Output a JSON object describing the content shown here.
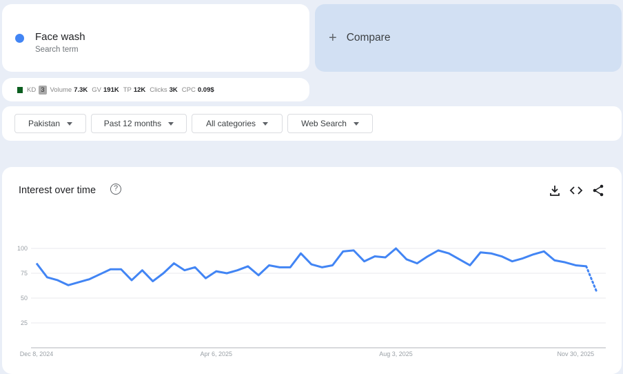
{
  "term": {
    "name": "Face wash",
    "subtitle": "Search term",
    "color": "#4285f4"
  },
  "compare": {
    "label": "Compare",
    "icon": "plus-icon"
  },
  "metrics": {
    "flag": "pakistan-flag-icon",
    "kd_label": "KD",
    "kd": "3",
    "volume_label": "Volume",
    "volume": "7.3K",
    "gv_label": "GV",
    "gv": "191K",
    "tp_label": "TP",
    "tp": "12K",
    "clicks_label": "Clicks",
    "clicks": "3K",
    "cpc_label": "CPC",
    "cpc": "0.09$"
  },
  "filters": [
    {
      "label": "Pakistan"
    },
    {
      "label": "Past 12 months"
    },
    {
      "label": "All categories"
    },
    {
      "label": "Web Search"
    }
  ],
  "chart_card": {
    "title": "Interest over time",
    "icons": [
      "help-icon",
      "download-icon",
      "embed-code-icon",
      "share-icon"
    ]
  },
  "chart_data": {
    "type": "line",
    "title": "Interest over time",
    "ylim": [
      0,
      100
    ],
    "y_ticks": [
      "25",
      "50",
      "75",
      "100"
    ],
    "x_tick_labels": [
      "Dec 8, 2024",
      "Apr 6, 2025",
      "Aug 3, 2025",
      "Nov 30, 2025"
    ],
    "grid": true,
    "line_color": "#4285f4",
    "partial_last_point": true,
    "series": [
      {
        "name": "Face wash",
        "x": [
          "2024-12-08",
          "2024-12-15",
          "2024-12-22",
          "2024-12-29",
          "2025-01-05",
          "2025-01-12",
          "2025-01-19",
          "2025-01-26",
          "2025-02-02",
          "2025-02-09",
          "2025-02-16",
          "2025-02-23",
          "2025-03-02",
          "2025-03-09",
          "2025-03-16",
          "2025-03-23",
          "2025-03-30",
          "2025-04-06",
          "2025-04-13",
          "2025-04-20",
          "2025-04-27",
          "2025-05-04",
          "2025-05-11",
          "2025-05-18",
          "2025-05-25",
          "2025-06-01",
          "2025-06-08",
          "2025-06-15",
          "2025-06-22",
          "2025-06-29",
          "2025-07-06",
          "2025-07-13",
          "2025-07-20",
          "2025-07-27",
          "2025-08-03",
          "2025-08-10",
          "2025-08-17",
          "2025-08-24",
          "2025-08-31",
          "2025-09-07",
          "2025-09-14",
          "2025-09-21",
          "2025-09-28",
          "2025-10-05",
          "2025-10-12",
          "2025-10-19",
          "2025-10-26",
          "2025-11-02",
          "2025-11-09",
          "2025-11-16",
          "2025-11-23",
          "2025-11-30",
          "2025-12-07",
          "2025-12-14"
        ],
        "values": [
          85,
          71,
          68,
          63,
          66,
          69,
          74,
          79,
          79,
          68,
          78,
          67,
          75,
          85,
          78,
          81,
          70,
          77,
          75,
          78,
          82,
          73,
          83,
          81,
          81,
          95,
          84,
          81,
          83,
          97,
          98,
          87,
          92,
          91,
          100,
          89,
          85,
          92,
          98,
          95,
          89,
          83,
          96,
          95,
          92,
          87,
          90,
          94,
          97,
          88,
          86,
          83,
          82,
          56
        ]
      }
    ]
  }
}
